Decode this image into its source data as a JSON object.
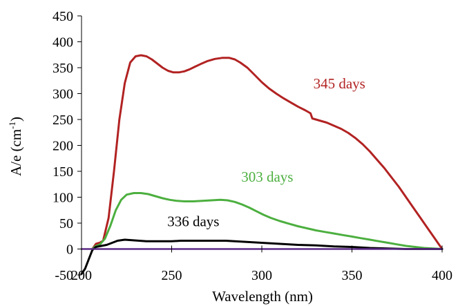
{
  "chart_data": {
    "type": "line",
    "title": "",
    "xlabel": "Wavelength (nm)",
    "ylabel_main": "A/e (cm",
    "ylabel_sup": "-1",
    "ylabel_close": ")",
    "xlim": [
      200,
      400
    ],
    "ylim": [
      -50,
      450
    ],
    "x_ticks": [
      200,
      250,
      300,
      350,
      400
    ],
    "y_ticks": [
      -50,
      0,
      50,
      100,
      150,
      200,
      250,
      300,
      350,
      400,
      450
    ],
    "grid": false,
    "legend": "none",
    "series": [
      {
        "name": "345 days",
        "color": "#b22222",
        "label_at": [
          343,
          310
        ],
        "points": [
          [
            206,
            0
          ],
          [
            208,
            10
          ],
          [
            210,
            12
          ],
          [
            212,
            16
          ],
          [
            215,
            60
          ],
          [
            218,
            150
          ],
          [
            221,
            250
          ],
          [
            224,
            320
          ],
          [
            227,
            360
          ],
          [
            230,
            372
          ],
          [
            233,
            374
          ],
          [
            236,
            372
          ],
          [
            239,
            366
          ],
          [
            242,
            358
          ],
          [
            245,
            350
          ],
          [
            248,
            344
          ],
          [
            251,
            341
          ],
          [
            254,
            341
          ],
          [
            257,
            343
          ],
          [
            260,
            347
          ],
          [
            263,
            352
          ],
          [
            266,
            357
          ],
          [
            270,
            363
          ],
          [
            274,
            367
          ],
          [
            278,
            369
          ],
          [
            282,
            369
          ],
          [
            285,
            366
          ],
          [
            288,
            360
          ],
          [
            292,
            350
          ],
          [
            296,
            336
          ],
          [
            300,
            322
          ],
          [
            304,
            310
          ],
          [
            308,
            300
          ],
          [
            312,
            291
          ],
          [
            316,
            283
          ],
          [
            320,
            275
          ],
          [
            324,
            268
          ],
          [
            327,
            262
          ],
          [
            328,
            252
          ],
          [
            332,
            248
          ],
          [
            336,
            244
          ],
          [
            340,
            238
          ],
          [
            344,
            232
          ],
          [
            348,
            224
          ],
          [
            352,
            214
          ],
          [
            356,
            202
          ],
          [
            360,
            188
          ],
          [
            364,
            172
          ],
          [
            368,
            156
          ],
          [
            372,
            138
          ],
          [
            376,
            120
          ],
          [
            380,
            100
          ],
          [
            384,
            80
          ],
          [
            388,
            60
          ],
          [
            392,
            40
          ],
          [
            396,
            20
          ],
          [
            400,
            0
          ]
        ]
      },
      {
        "name": "303 days",
        "color": "#4caf3f",
        "label_at": [
          303,
          130
        ],
        "points": [
          [
            206,
            0
          ],
          [
            208,
            6
          ],
          [
            210,
            8
          ],
          [
            213,
            20
          ],
          [
            216,
            45
          ],
          [
            219,
            75
          ],
          [
            222,
            95
          ],
          [
            225,
            105
          ],
          [
            229,
            108
          ],
          [
            233,
            108
          ],
          [
            237,
            106
          ],
          [
            241,
            102
          ],
          [
            245,
            98
          ],
          [
            249,
            95
          ],
          [
            253,
            93
          ],
          [
            257,
            92
          ],
          [
            262,
            92
          ],
          [
            267,
            93
          ],
          [
            272,
            94
          ],
          [
            277,
            95
          ],
          [
            281,
            94
          ],
          [
            285,
            91
          ],
          [
            289,
            86
          ],
          [
            293,
            80
          ],
          [
            297,
            73
          ],
          [
            301,
            66
          ],
          [
            305,
            60
          ],
          [
            310,
            54
          ],
          [
            315,
            49
          ],
          [
            320,
            44
          ],
          [
            325,
            40
          ],
          [
            330,
            36
          ],
          [
            335,
            33
          ],
          [
            340,
            30
          ],
          [
            345,
            27
          ],
          [
            350,
            24
          ],
          [
            355,
            21
          ],
          [
            360,
            18
          ],
          [
            365,
            15
          ],
          [
            370,
            12
          ],
          [
            375,
            9
          ],
          [
            380,
            6
          ],
          [
            385,
            4
          ],
          [
            390,
            2
          ],
          [
            395,
            1
          ],
          [
            400,
            0
          ]
        ]
      },
      {
        "name": "336 days",
        "color": "#000000",
        "label_at": [
          262,
          44
        ],
        "points": [
          [
            200,
            -48
          ],
          [
            202,
            -38
          ],
          [
            204,
            -20
          ],
          [
            206,
            -2
          ],
          [
            208,
            4
          ],
          [
            211,
            6
          ],
          [
            214,
            8
          ],
          [
            217,
            12
          ],
          [
            220,
            16
          ],
          [
            224,
            18
          ],
          [
            228,
            17
          ],
          [
            232,
            16
          ],
          [
            236,
            15
          ],
          [
            240,
            15
          ],
          [
            245,
            15
          ],
          [
            250,
            15
          ],
          [
            255,
            16
          ],
          [
            260,
            16
          ],
          [
            265,
            16
          ],
          [
            270,
            16
          ],
          [
            275,
            16
          ],
          [
            280,
            16
          ],
          [
            285,
            15
          ],
          [
            290,
            14
          ],
          [
            295,
            13
          ],
          [
            300,
            12
          ],
          [
            310,
            10
          ],
          [
            320,
            8
          ],
          [
            330,
            7
          ],
          [
            340,
            5
          ],
          [
            350,
            4
          ],
          [
            360,
            2
          ],
          [
            370,
            1
          ],
          [
            380,
            0
          ],
          [
            390,
            0
          ],
          [
            400,
            0
          ]
        ]
      },
      {
        "name": "",
        "color": "#5b2a86",
        "label_at": null,
        "points": [
          [
            200,
            0
          ],
          [
            400,
            0
          ]
        ]
      }
    ]
  }
}
